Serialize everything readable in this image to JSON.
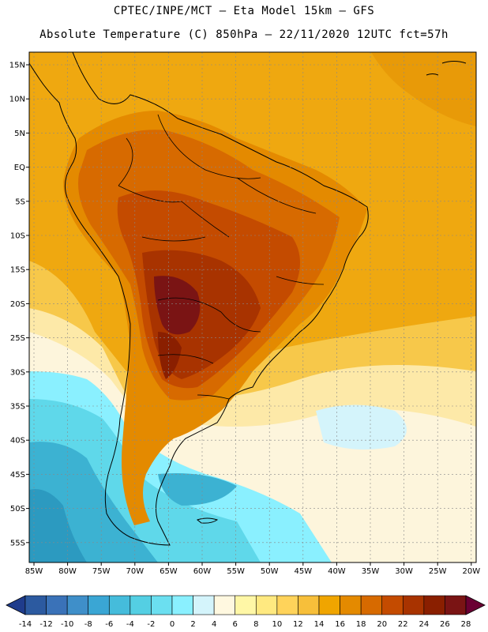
{
  "header": {
    "line1": "CPTEC/INPE/MCT –  Eta Model 15km – GFS",
    "line2": "Absolute Temperature (C) 850hPa – 22/11/2020 12UTC fct=57h"
  },
  "axes": {
    "lat_labels": [
      "15N",
      "10N",
      "5N",
      "EQ",
      "5S",
      "10S",
      "15S",
      "20S",
      "25S",
      "30S",
      "35S",
      "40S",
      "45S",
      "50S",
      "55S"
    ],
    "lon_labels": [
      "85W",
      "80W",
      "75W",
      "70W",
      "65W",
      "60W",
      "55W",
      "50W",
      "45W",
      "40W",
      "35W",
      "30W",
      "25W",
      "20W"
    ]
  },
  "colorbar": {
    "labels": [
      "-14",
      "-12",
      "-10",
      "-8",
      "-6",
      "-4",
      "-2",
      "0",
      "2",
      "4",
      "6",
      "8",
      "10",
      "12",
      "14",
      "16",
      "18",
      "20",
      "22",
      "24",
      "26",
      "28"
    ],
    "colors": [
      "#1f3c8c",
      "#2c5aa0",
      "#3a72b8",
      "#3f8fc9",
      "#3aa6d4",
      "#45bcdb",
      "#54cfe3",
      "#6bdff0",
      "#8af0ff",
      "#d4f4fb",
      "#fff8e0",
      "#fff7a6",
      "#ffe980",
      "#ffd35a",
      "#f7bf3a",
      "#f0a500",
      "#e48a00",
      "#d76a00",
      "#c44b00",
      "#a83300",
      "#8a1f00",
      "#7a1414",
      "#6a0033"
    ]
  },
  "colors": {
    "ocean_warm": "#efa810",
    "ocean_mid": "#f7c84a",
    "ocean_cool": "#fde9a8",
    "south_cream": "#fdf5dc",
    "cyan": "#5fd8ea",
    "blue": "#3cb2d2"
  }
}
